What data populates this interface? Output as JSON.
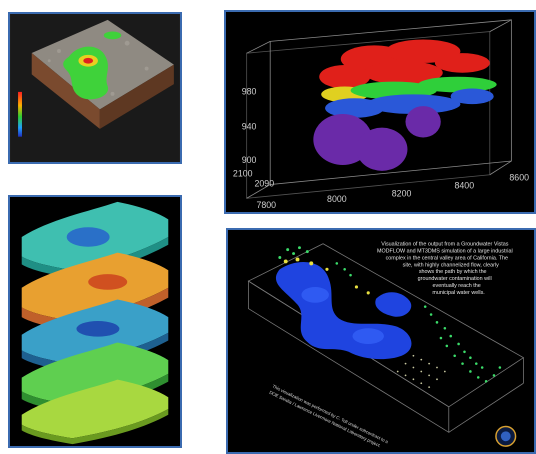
{
  "panels": {
    "terrain": {
      "name": "terrain-plume-panel",
      "scale_caption": ""
    },
    "plume_box": {
      "name": "plume-3d-box-panel",
      "z_ticks": [
        "980",
        "940",
        "900"
      ],
      "y_ticks": [
        "2100",
        "2090"
      ],
      "x_ticks": [
        "7800",
        "8000",
        "8200",
        "8400",
        "8600"
      ]
    },
    "layers": {
      "name": "stacked-layers-panel"
    },
    "simulation": {
      "name": "groundwater-simulation-panel",
      "description_lines": [
        "Visualization of the output from a Groundwater Vistas",
        "MODFLOW and MT3DMS simulation of a large industrial",
        "complex in the central valley area of California. The",
        "site, with highly channelized flow, clearly",
        "shows the path by which the",
        "groundwater contamination will",
        "eventually reach the",
        "municipal water wells."
      ],
      "credit_lines": [
        "This visualization was performed by C. Toll under subcontract to a",
        "DOE Sandia / Lawrence Livermore National Laboratory project."
      ]
    }
  },
  "colors": {
    "panel_border": "#3b6bb0",
    "plume_red": "#e0201a",
    "plume_green": "#2fcf3a",
    "plume_blue": "#2a58d8",
    "plume_purple": "#6a2aa8"
  }
}
